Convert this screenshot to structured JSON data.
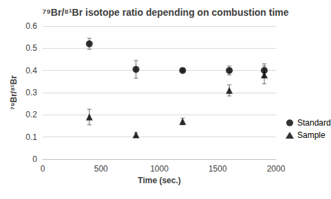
{
  "chart_data": {
    "type": "scatter",
    "title": "⁷⁹Br/⁸¹Br isotope ratio depending on combustion time",
    "x_label": "Time (sec.)",
    "y_label": "⁷⁹Br/⁸¹Br",
    "x": [
      400,
      800,
      1200,
      1600,
      1900
    ],
    "series": [
      {
        "name": "Standard",
        "color": "#000000",
        "marker": "circle",
        "values": [
          0.52,
          0.405,
          0.4,
          0.4,
          0.4
        ],
        "errors": [
          0.025,
          0.04,
          0.005,
          0.02,
          0.03
        ]
      },
      {
        "name": "Sample",
        "color": "#000000",
        "marker": "triangle",
        "values": [
          0.19,
          0.11,
          0.17,
          0.31,
          0.38
        ],
        "errors": [
          0.035,
          0.01,
          0.015,
          0.025,
          0.04
        ]
      }
    ],
    "xlim": [
      0,
      2000
    ],
    "xticks": [
      0,
      500,
      1000,
      1500,
      2000
    ],
    "ylim": [
      0,
      0.6
    ],
    "yticks": [
      0,
      0.1,
      0.2,
      0.3,
      0.4,
      0.5,
      0.6
    ],
    "grid": true,
    "legend": "right"
  }
}
